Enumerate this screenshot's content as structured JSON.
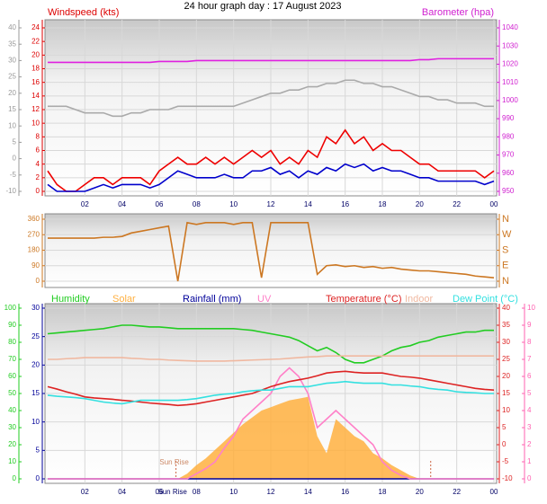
{
  "chart_data": [
    {
      "type": "line",
      "title": "24 hour graph day : 17 August 2023",
      "grid": true,
      "x": [
        0,
        0.5,
        1,
        1.5,
        2,
        2.5,
        3,
        3.5,
        4,
        4.5,
        5,
        5.5,
        6,
        6.5,
        7,
        7.5,
        8,
        8.5,
        9,
        9.5,
        10,
        10.5,
        11,
        11.5,
        12,
        12.5,
        13,
        13.5,
        14,
        14.5,
        15,
        15.5,
        16,
        16.5,
        17,
        17.5,
        18,
        18.5,
        19,
        19.5,
        20,
        20.5,
        21,
        21.5,
        22,
        22.5,
        23,
        23.5,
        24
      ],
      "xlim": [
        0,
        24
      ],
      "xticks": [
        {
          "value": 2,
          "label": "02"
        },
        {
          "value": 4,
          "label": "04"
        },
        {
          "value": 6,
          "label": "06"
        },
        {
          "value": 8,
          "label": "08"
        },
        10,
        12,
        14,
        16,
        18,
        20,
        22,
        {
          "value": 24,
          "label": "00"
        }
      ],
      "axes": [
        {
          "title": "Windspeed (kts)",
          "color": "#dd0000",
          "side": "left",
          "lim": [
            0,
            24
          ],
          "ticks": [
            0,
            2,
            4,
            6,
            8,
            10,
            12,
            14,
            16,
            18,
            20,
            22,
            24
          ]
        },
        {
          "color": "#999999",
          "side": "left",
          "lim": [
            -10,
            40
          ],
          "ticks": [
            -10,
            -5,
            0,
            5,
            10,
            15,
            20,
            25,
            30,
            35,
            40
          ]
        },
        {
          "title": "Barometer (hpa)",
          "color": "#d020d0",
          "side": "right",
          "lim": [
            950,
            1040
          ],
          "ticks": [
            950,
            960,
            970,
            980,
            990,
            1000,
            1010,
            1020,
            1030,
            1040
          ]
        }
      ],
      "series": [
        {
          "color": "#aaaaaa",
          "axis": 1,
          "values": [
            16,
            16,
            16,
            15,
            14,
            14,
            14,
            13,
            13,
            14,
            14,
            15,
            15,
            15,
            16,
            16,
            16,
            16,
            16,
            16,
            16,
            17,
            18,
            19,
            20,
            20,
            21,
            21,
            22,
            22,
            23,
            23,
            24,
            24,
            23,
            23,
            22,
            22,
            21,
            20,
            19,
            19,
            18,
            18,
            17,
            17,
            17,
            16,
            16
          ]
        },
        {
          "color": "#e020e0",
          "axis": 2,
          "values": [
            1021,
            1021,
            1021,
            1021,
            1021,
            1021,
            1021,
            1021,
            1021,
            1021,
            1021,
            1021,
            1021.5,
            1021.5,
            1021.5,
            1021.5,
            1022,
            1022,
            1022,
            1022,
            1022,
            1022,
            1022,
            1022,
            1022,
            1022,
            1022,
            1022,
            1022,
            1022,
            1022,
            1022,
            1022,
            1022,
            1022,
            1022,
            1022,
            1022,
            1022,
            1022,
            1022.5,
            1022.5,
            1023,
            1023,
            1023,
            1023,
            1023,
            1023,
            1023
          ]
        },
        {
          "color": "#ee0000",
          "axis": 0,
          "values": [
            3,
            1,
            0,
            0,
            1,
            2,
            2,
            1,
            2,
            2,
            2,
            1,
            3,
            4,
            5,
            4,
            4,
            5,
            4,
            5,
            4,
            5,
            6,
            5,
            6,
            4,
            5,
            4,
            6,
            5,
            8,
            7,
            9,
            7,
            8,
            6,
            7,
            6,
            6,
            5,
            4,
            4,
            3,
            3,
            3,
            3,
            3,
            2,
            3
          ]
        },
        {
          "color": "#0000cc",
          "axis": 0,
          "values": [
            1,
            0,
            0,
            0,
            0,
            0.5,
            1,
            0.5,
            1,
            1,
            1,
            0.5,
            1,
            2,
            3,
            2.5,
            2,
            2,
            2,
            2.5,
            2,
            2,
            3,
            3,
            3.5,
            2.5,
            3,
            2,
            3,
            2.5,
            3.5,
            3,
            4,
            3.5,
            4,
            3,
            3.5,
            3,
            3,
            2.5,
            2,
            2,
            1.5,
            1.5,
            1.5,
            1.5,
            1.5,
            1,
            1.5
          ]
        }
      ]
    },
    {
      "type": "line",
      "grid": true,
      "x": [
        0,
        0.5,
        1,
        1.5,
        2,
        2.5,
        3,
        3.5,
        4,
        4.5,
        5,
        5.5,
        6,
        6.5,
        7,
        7.5,
        8,
        8.5,
        9,
        9.5,
        10,
        10.5,
        11,
        11.5,
        12,
        12.5,
        13,
        13.5,
        14,
        14.5,
        15,
        15.5,
        16,
        16.5,
        17,
        17.5,
        18,
        18.5,
        19,
        19.5,
        20,
        20.5,
        21,
        21.5,
        22,
        22.5,
        23,
        23.5,
        24
      ],
      "xlim": [
        0,
        24
      ],
      "axes": [
        {
          "color": "#cc7722",
          "side": "left",
          "lim": [
            0,
            360
          ],
          "ticks": [
            0,
            90,
            180,
            270,
            360
          ]
        },
        {
          "color": "#cc7722",
          "side": "right",
          "lim": [
            0,
            360
          ],
          "ticks": [
            {
              "value": 360,
              "label": "N"
            },
            {
              "value": 270,
              "label": "W"
            },
            {
              "value": 180,
              "label": "S"
            },
            {
              "value": 90,
              "label": "E"
            },
            {
              "value": 0,
              "label": "N"
            }
          ]
        }
      ],
      "series": [
        {
          "color": "#cc7722",
          "axis": 0,
          "values": [
            250,
            250,
            250,
            250,
            250,
            250,
            255,
            255,
            260,
            280,
            290,
            300,
            310,
            320,
            0,
            340,
            330,
            340,
            340,
            340,
            330,
            340,
            340,
            20,
            340,
            340,
            340,
            340,
            340,
            40,
            90,
            95,
            85,
            90,
            80,
            85,
            75,
            80,
            70,
            65,
            60,
            60,
            55,
            50,
            45,
            40,
            30,
            25,
            20
          ]
        }
      ]
    },
    {
      "type": "line",
      "grid": true,
      "x": [
        0,
        0.5,
        1,
        1.5,
        2,
        2.5,
        3,
        3.5,
        4,
        4.5,
        5,
        5.5,
        6,
        6.5,
        7,
        7.5,
        8,
        8.5,
        9,
        9.5,
        10,
        10.5,
        11,
        11.5,
        12,
        12.5,
        13,
        13.5,
        14,
        14.5,
        15,
        15.5,
        16,
        16.5,
        17,
        17.5,
        18,
        18.5,
        19,
        19.5,
        20,
        20.5,
        21,
        21.5,
        22,
        22.5,
        23,
        23.5,
        24
      ],
      "xlim": [
        0,
        24
      ],
      "xticks": [
        {
          "value": 2,
          "label": "02"
        },
        {
          "value": 4,
          "label": "04"
        },
        {
          "value": 6,
          "label": "06"
        },
        {
          "value": 8,
          "label": "08"
        },
        10,
        12,
        14,
        16,
        18,
        20,
        22,
        {
          "value": 24,
          "label": "00"
        }
      ],
      "markers": [
        {
          "label": "Sun Rise",
          "x": 6.9
        },
        {
          "x": 20.6
        }
      ],
      "axes": [
        {
          "color": "#000099",
          "side": "left",
          "lim": [
            0,
            30
          ],
          "ticks": [
            0,
            5,
            10,
            15,
            20,
            25,
            30
          ]
        },
        {
          "color": "#22cc22",
          "side": "left",
          "lim": [
            0,
            100
          ],
          "ticks": [
            0,
            10,
            20,
            30,
            40,
            50,
            60,
            70,
            80,
            90,
            100
          ]
        },
        {
          "color": "#dd2222",
          "side": "right",
          "lim": [
            -10,
            40
          ],
          "ticks": [
            -10,
            -5,
            0,
            5,
            10,
            15,
            20,
            25,
            30,
            35,
            40
          ]
        },
        {
          "color": "#ff60b0",
          "side": "right",
          "lim": [
            0,
            10
          ],
          "ticks": [
            0,
            1,
            2,
            3,
            4,
            5,
            6,
            7,
            8,
            9,
            10
          ]
        }
      ],
      "series": [
        {
          "name": "Humidity",
          "color": "#22cc22",
          "axis": 1,
          "values": [
            85,
            85.5,
            86,
            86.5,
            87,
            87.5,
            88,
            89,
            90,
            90,
            89.5,
            89,
            89,
            88.5,
            88,
            88,
            88,
            88,
            88,
            88,
            88,
            87.5,
            87,
            86,
            85,
            84,
            83,
            81,
            78,
            75,
            77,
            74,
            70,
            68,
            68,
            70,
            72,
            75,
            77,
            78,
            80,
            81,
            83,
            84,
            85,
            86,
            86,
            87,
            87
          ]
        },
        {
          "name": "Solar",
          "color": "#ffb040",
          "axis": 1,
          "fill": true,
          "values": [
            0,
            0,
            0,
            0,
            0,
            0,
            0,
            0,
            0,
            0,
            0,
            0,
            0,
            0,
            0,
            3,
            8,
            12,
            17,
            22,
            27,
            32,
            36,
            40,
            42,
            44,
            46,
            47,
            48,
            25,
            15,
            35,
            30,
            25,
            22,
            15,
            12,
            8,
            5,
            2,
            0,
            0,
            0,
            0,
            0,
            0,
            0,
            0,
            0
          ]
        },
        {
          "name": "Rainfall (mm)",
          "color": "#000099",
          "axis": 0,
          "values": [
            0,
            0,
            0,
            0,
            0,
            0,
            0,
            0,
            0,
            0,
            0,
            0,
            0,
            0,
            0,
            0,
            0,
            0,
            0,
            0,
            0,
            0,
            0,
            0,
            0,
            0,
            0,
            0,
            0,
            0,
            0,
            0,
            0,
            0,
            0,
            0,
            0,
            0,
            0,
            0,
            0,
            0,
            0,
            0,
            0,
            0,
            0,
            0,
            0
          ]
        },
        {
          "name": "UV",
          "color": "#ff80c8",
          "axis": 3,
          "values": [
            0,
            0,
            0,
            0,
            0,
            0,
            0,
            0,
            0,
            0,
            0,
            0,
            0,
            0,
            0,
            0,
            0.3,
            0.6,
            1,
            1.8,
            2.5,
            3.5,
            4,
            4.5,
            5,
            6,
            6.5,
            6,
            5,
            3,
            3.5,
            4,
            3.5,
            3,
            2.5,
            2,
            1,
            0.5,
            0.2,
            0,
            0,
            0,
            0,
            0,
            0,
            0,
            0,
            0,
            0
          ]
        },
        {
          "name": "Temperature (°C)",
          "color": "#dd2222",
          "axis": 2,
          "values": [
            17,
            16.3,
            15.5,
            14.8,
            14,
            13.7,
            13.5,
            13.3,
            13,
            12.8,
            12.5,
            12.2,
            12,
            11.8,
            11.5,
            11.7,
            12,
            12.5,
            13,
            13.5,
            14,
            14.5,
            15,
            16,
            17,
            17.8,
            18.5,
            19,
            19.5,
            20.2,
            21,
            21.3,
            21.5,
            21.2,
            21,
            21,
            21,
            20.5,
            20,
            19.8,
            19.5,
            19,
            18.5,
            18,
            17.5,
            17,
            16.5,
            16.2,
            16
          ]
        },
        {
          "name": "Indoor",
          "color": "#f0b8a0",
          "axis": 2,
          "values": [
            25,
            25,
            25.2,
            25.3,
            25.5,
            25.5,
            25.5,
            25.5,
            25.5,
            25.3,
            25.2,
            25,
            25,
            24.8,
            24.7,
            24.6,
            24.5,
            24.5,
            24.5,
            24.5,
            24.6,
            24.7,
            24.8,
            24.9,
            25,
            25.1,
            25.3,
            25.5,
            25.7,
            25.8,
            26,
            26,
            26,
            26,
            26,
            26,
            26,
            26,
            26,
            26,
            26,
            26,
            26,
            26,
            26,
            26,
            26,
            26,
            26
          ]
        },
        {
          "name": "Dew Point (°C)",
          "color": "#33e0e0",
          "axis": 2,
          "values": [
            14.5,
            14.2,
            14,
            13.8,
            13.5,
            13,
            12.5,
            12.2,
            12,
            12.5,
            13,
            13,
            13,
            13,
            13,
            13.2,
            13.5,
            14,
            14.5,
            14.8,
            15,
            15.5,
            15.8,
            16,
            16,
            16.5,
            17,
            17,
            17,
            17.5,
            18,
            18.2,
            18.5,
            18.2,
            18,
            18,
            18,
            17.5,
            17.5,
            17.2,
            17,
            16.5,
            16.2,
            16,
            15.5,
            15.3,
            15.2,
            15,
            15
          ]
        }
      ]
    }
  ]
}
